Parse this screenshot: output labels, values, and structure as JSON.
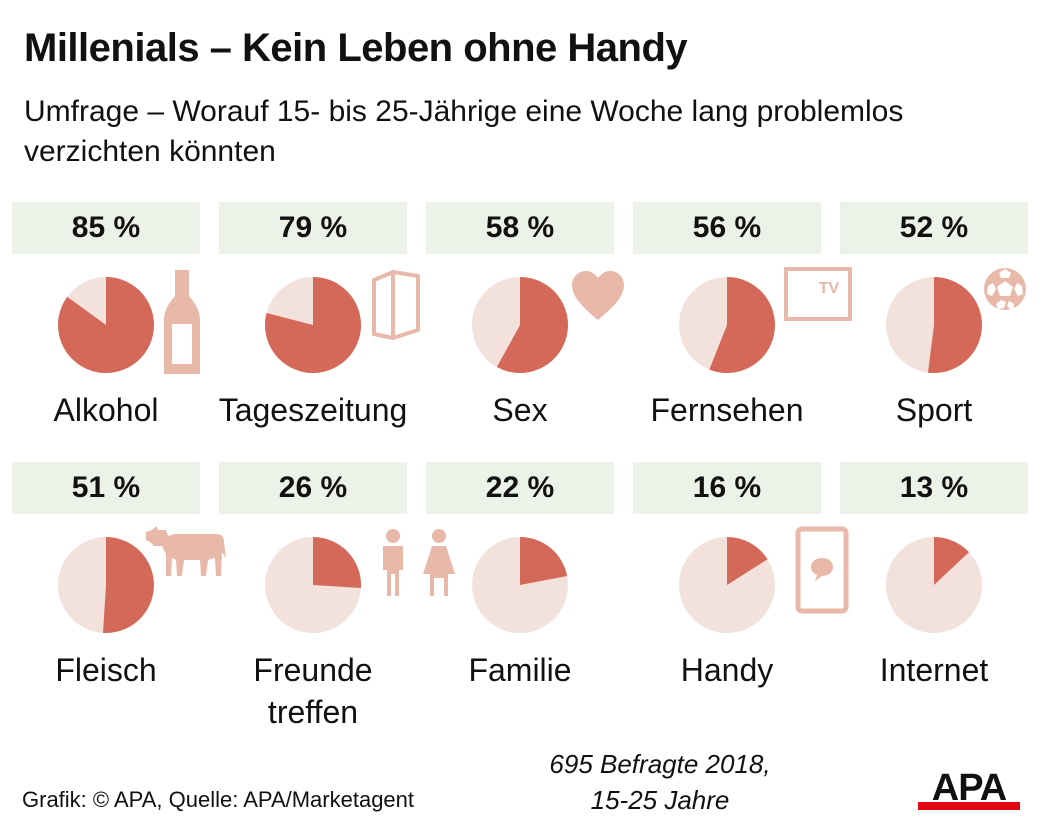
{
  "title": "Millenials – Kein Leben ohne Handy",
  "subtitle": "Umfrage – Worauf 15- bis 25-Jährige eine Woche lang problemlos verzichten könnten",
  "chart_data": {
    "type": "pie",
    "title": "Millenials – Kein Leben ohne Handy",
    "subtitle": "Umfrage – Worauf 15- bis 25-Jährige eine Woche lang problemlos verzichten könnten",
    "unit": "%",
    "colors": {
      "value": "#d4695a",
      "remainder": "#f3e2dc",
      "icon": "#e8b9a8",
      "box": "#edf2e8"
    },
    "items": [
      {
        "label": "Alkohol",
        "value": 85,
        "value_label": "85 %",
        "icon": "bottle-icon"
      },
      {
        "label": "Tageszeitung",
        "value": 79,
        "value_label": "79 %",
        "icon": "newspaper-icon"
      },
      {
        "label": "Sex",
        "value": 58,
        "value_label": "58 %",
        "icon": "heart-icon"
      },
      {
        "label": "Fernsehen",
        "value": 56,
        "value_label": "56 %",
        "icon": "tv-icon",
        "icon_text": "TV"
      },
      {
        "label": "Sport",
        "value": 52,
        "value_label": "52 %",
        "icon": "soccer-ball-icon"
      },
      {
        "label": "Fleisch",
        "value": 51,
        "value_label": "51 %",
        "icon": "cow-icon"
      },
      {
        "label_lines": [
          "Freunde",
          "treffen"
        ],
        "value": 26,
        "value_label": "26 %",
        "icon": "people-icon"
      },
      {
        "label": "Familie",
        "value": 22,
        "value_label": "22 %",
        "icon": ""
      },
      {
        "label": "Handy",
        "value": 16,
        "value_label": "16 %",
        "icon": "smartphone-icon"
      },
      {
        "label": "Internet",
        "value": 13,
        "value_label": "13 %",
        "icon": ""
      }
    ]
  },
  "footer": {
    "source": "Grafik: © APA, Quelle: APA/Marketagent",
    "note_line1": "695 Befragte 2018,",
    "note_line2": "15-25 Jahre",
    "logo_text": "APA"
  }
}
